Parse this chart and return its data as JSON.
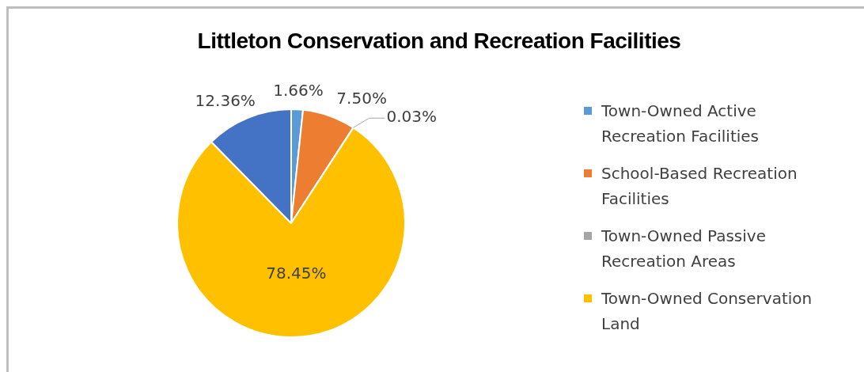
{
  "chart_data": {
    "type": "pie",
    "title": "Littleton Conservation and Recreation Facilities",
    "categories": [
      "Town-Owned Active Recreation Facilities",
      "School-Based Recreation Facilities",
      "Town-Owned Passive Recreation Areas",
      "Town-Owned Conservation Land",
      null
    ],
    "values": [
      1.66,
      7.5,
      0.03,
      78.45,
      12.36
    ],
    "value_labels": [
      "1.66%",
      "7.50%",
      "0.03%",
      "78.45%",
      "12.36%"
    ],
    "colors": [
      "#5b9bd5",
      "#ed7d31",
      "#a5a5a5",
      "#ffc000",
      "#4472c4"
    ],
    "legend": "right"
  }
}
